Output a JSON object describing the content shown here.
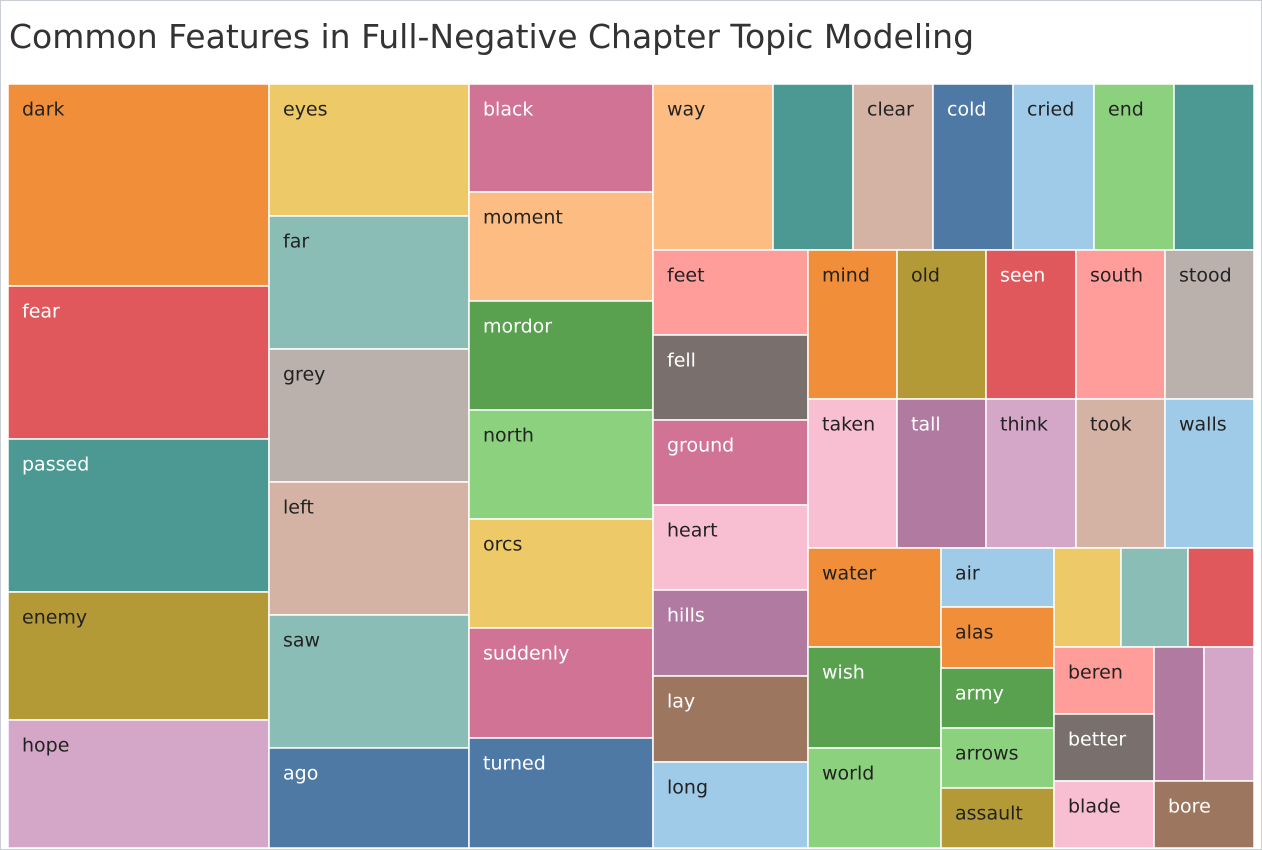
{
  "chart_data": {
    "type": "treemap",
    "title": "Common Features in Full-Negative Chapter Topic Modeling",
    "label_colors": {
      "dark_text": "#222222",
      "light_text": "#ffffff"
    },
    "items": [
      {
        "label": "dark",
        "color": "#F08E39"
      },
      {
        "label": "fear",
        "color": "#E0585B"
      },
      {
        "label": "passed",
        "color": "#4C9892"
      },
      {
        "label": "enemy",
        "color": "#B39A36"
      },
      {
        "label": "hope",
        "color": "#D4A6C8"
      },
      {
        "label": "eyes",
        "color": "#EDCA67"
      },
      {
        "label": "far",
        "color": "#89BDB6"
      },
      {
        "label": "grey",
        "color": "#BAB0AC"
      },
      {
        "label": "left",
        "color": "#D4B3A5"
      },
      {
        "label": "saw",
        "color": "#89BDB6"
      },
      {
        "label": "ago",
        "color": "#4E79A5"
      },
      {
        "label": "black",
        "color": "#D17394"
      },
      {
        "label": "moment",
        "color": "#FDBC81"
      },
      {
        "label": "mordor",
        "color": "#59A14F"
      },
      {
        "label": "north",
        "color": "#8CD17E"
      },
      {
        "label": "orcs",
        "color": "#EDCA67"
      },
      {
        "label": "suddenly",
        "color": "#D17394"
      },
      {
        "label": "turned",
        "color": "#4E79A5"
      },
      {
        "label": "way",
        "color": "#FDBC81"
      },
      {
        "label": "",
        "color": "#4C9892"
      },
      {
        "label": "clear",
        "color": "#D4B3A5"
      },
      {
        "label": "cold",
        "color": "#4E79A5"
      },
      {
        "label": "cried",
        "color": "#A0CBE8"
      },
      {
        "label": "end",
        "color": "#8CD17E"
      },
      {
        "label": "",
        "color": "#4C9892"
      },
      {
        "label": "feet",
        "color": "#FF9D9A"
      },
      {
        "label": "fell",
        "color": "#79706E"
      },
      {
        "label": "ground",
        "color": "#D17394"
      },
      {
        "label": "heart",
        "color": "#F8BED2"
      },
      {
        "label": "hills",
        "color": "#B07AA1"
      },
      {
        "label": "lay",
        "color": "#9D7660"
      },
      {
        "label": "long",
        "color": "#A0CBE8"
      },
      {
        "label": "mind",
        "color": "#F08E39"
      },
      {
        "label": "old",
        "color": "#B39A36"
      },
      {
        "label": "seen",
        "color": "#E0585B"
      },
      {
        "label": "south",
        "color": "#FF9D9A"
      },
      {
        "label": "stood",
        "color": "#BAB0AC"
      },
      {
        "label": "taken",
        "color": "#F8BED2"
      },
      {
        "label": "tall",
        "color": "#B07AA1"
      },
      {
        "label": "think",
        "color": "#D4A6C8"
      },
      {
        "label": "took",
        "color": "#D4B3A5"
      },
      {
        "label": "walls",
        "color": "#A0CBE8"
      },
      {
        "label": "water",
        "color": "#F08E39"
      },
      {
        "label": "air",
        "color": "#A0CBE8"
      },
      {
        "label": "",
        "color": "#EDCA67"
      },
      {
        "label": "",
        "color": "#89BDB6"
      },
      {
        "label": "",
        "color": "#E0585B"
      },
      {
        "label": "alas",
        "color": "#F08E39"
      },
      {
        "label": "wish",
        "color": "#59A14F"
      },
      {
        "label": "army",
        "color": "#59A14F"
      },
      {
        "label": "beren",
        "color": "#FF9D9A"
      },
      {
        "label": "",
        "color": "#B07AA1"
      },
      {
        "label": "",
        "color": "#D4A6C8"
      },
      {
        "label": "arrows",
        "color": "#8CD17E"
      },
      {
        "label": "better",
        "color": "#79706E"
      },
      {
        "label": "world",
        "color": "#8CD17E"
      },
      {
        "label": "assault",
        "color": "#B39A36"
      },
      {
        "label": "blade",
        "color": "#F8BED2"
      },
      {
        "label": "bore",
        "color": "#9D7660"
      }
    ]
  }
}
